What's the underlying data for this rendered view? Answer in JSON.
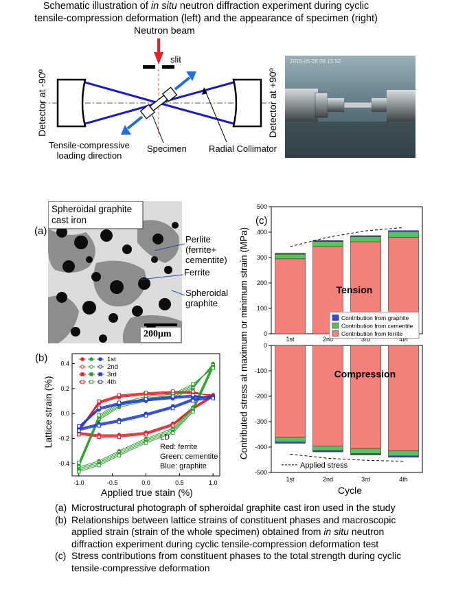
{
  "top_figure": {
    "neutron_beam_label": "Neutron beam",
    "slit_label": "slit",
    "detector_left_label": "Detector at -90º",
    "detector_right_label": "Detector at +90º",
    "loading_direction_label_1": "Tensile-compressive",
    "loading_direction_label_2": "loading direction",
    "specimen_label": "Specimen",
    "collimator_label": "Radial Collimator",
    "photo_timestamp": "2016-05-26  08 15 52",
    "caption_line1_pre": "Schematic illustration of ",
    "caption_line1_em": "in situ",
    "caption_line1_post": " neutron diffraction experiment during cyclic",
    "caption_line2": "tensile-compression deformation (left) and the appearance of specimen (right)"
  },
  "panel_a": {
    "label": "(a)",
    "title_line1": "Spheroidal graphite",
    "title_line2": "cast iron",
    "perlite_1": "Perlite",
    "perlite_2": "(ferrite+",
    "perlite_3": "cementite)",
    "ferrite": "Ferrite",
    "graphite_1": "Spheroidal",
    "graphite_2": "graphite",
    "scale": "200μm"
  },
  "panel_b": {
    "label": "(b)",
    "xlabel": "Applied true stain (%)",
    "ylabel": "Lattice strain (%)",
    "legend": [
      "1st",
      "2nd",
      "3rd",
      "4th"
    ],
    "note_ld": "LD",
    "note_red": "Red: ferrite",
    "note_green": "Green: cementite",
    "note_blue": "Blue: graphite",
    "x_ticks": [
      "-1.0",
      "-0.5",
      "0.0",
      "0.5",
      "1.0"
    ],
    "y_ticks": [
      "0.4",
      "0.2",
      "0.0",
      "-0.2",
      "-0.4"
    ],
    "colors": {
      "ferrite": "#e8202a",
      "cementite": "#2ea02e",
      "graphite": "#1f3fd6"
    }
  },
  "panel_c": {
    "label": "(c)",
    "ylabel": "Contributed stress at maximum or minimum strain (MPa)",
    "xlabel": "Cycle",
    "tension_label": "Tension",
    "compression_label": "Compression",
    "legend": [
      "Contribution from graphite",
      "Contribution from cementite",
      "Contribution from ferrite"
    ],
    "applied_stress_label": "Applied stress",
    "top_y_ticks": [
      "500",
      "400",
      "300",
      "200",
      "100",
      "0"
    ],
    "bottom_y_ticks": [
      "0",
      "-100",
      "-200",
      "-300",
      "-400",
      "-500"
    ],
    "colors": {
      "ferrite": "#f4807a",
      "cementite": "#59c25a",
      "graphite": "#3344ee"
    }
  },
  "chart_data": [
    {
      "type": "bar",
      "categories": [
        "1st",
        "2nd",
        "3rd",
        "4th"
      ],
      "ylabel": "Contributed stress at maximum or minimum strain (MPa)",
      "xlabel": "Cycle",
      "ylim": [
        0,
        500
      ],
      "series": [
        {
          "name": "Contribution from ferrite",
          "values": [
            295,
            343,
            362,
            380
          ]
        },
        {
          "name": "Contribution from cementite",
          "values": [
            18,
            20,
            20,
            22
          ]
        },
        {
          "name": "Contribution from graphite",
          "values": [
            4,
            4,
            4,
            4
          ]
        }
      ],
      "applied_stress_trend": [
        343,
        380,
        405,
        418
      ]
    },
    {
      "type": "bar",
      "categories": [
        "1st",
        "2nd",
        "3rd",
        "4th"
      ],
      "xlabel": "Cycle",
      "ylim": [
        -500,
        0
      ],
      "series": [
        {
          "name": "Contribution from ferrite",
          "values": [
            -362,
            -396,
            -406,
            -415
          ]
        },
        {
          "name": "Contribution from cementite",
          "values": [
            -18,
            -18,
            -20,
            -20
          ]
        },
        {
          "name": "Contribution from graphite",
          "values": [
            -5,
            -5,
            -5,
            -5
          ]
        }
      ],
      "applied_stress_trend": [
        -428,
        -444,
        -452,
        -456
      ]
    },
    {
      "type": "line",
      "xlabel": "Applied true stain (%)",
      "ylabel": "Lattice strain (%)",
      "xlim": [
        -1.1,
        1.1
      ],
      "ylim": [
        -0.5,
        0.48
      ],
      "series": [
        {
          "name": "ferrite",
          "x": [
            -1.0,
            -0.7,
            -0.4,
            0.0,
            0.4,
            0.7,
            1.0,
            0.7,
            0.4,
            0.0,
            -0.4,
            -0.7,
            -1.0
          ],
          "y": [
            -0.15,
            -0.17,
            -0.17,
            -0.15,
            -0.08,
            0.05,
            0.15,
            0.16,
            0.16,
            0.15,
            0.13,
            0.08,
            -0.15
          ]
        },
        {
          "name": "cementite",
          "x": [
            -1.0,
            -0.7,
            -0.4,
            0.0,
            0.4,
            0.7,
            1.0,
            0.7,
            0.4,
            0.0,
            -0.4,
            -0.7,
            -1.0
          ],
          "y": [
            -0.43,
            -0.38,
            -0.3,
            -0.2,
            -0.12,
            0.05,
            0.4,
            0.2,
            0.12,
            0.1,
            0.05,
            -0.05,
            -0.43
          ]
        },
        {
          "name": "graphite",
          "x": [
            -1.0,
            -0.7,
            -0.4,
            0.0,
            0.4,
            0.7,
            1.0,
            0.7,
            0.4,
            0.0,
            -0.4,
            -0.7,
            -1.0
          ],
          "y": [
            -0.12,
            -0.08,
            -0.05,
            0.0,
            0.06,
            0.12,
            0.14,
            0.13,
            0.12,
            0.1,
            0.07,
            0.03,
            -0.12
          ]
        }
      ]
    }
  ],
  "captions": [
    {
      "label": "(a)",
      "text": "Microstructural photograph of spheroidal graphite cast iron used in the study"
    },
    {
      "label": "(b)",
      "text_1": "Relationships between lattice strains of constituent phases and macroscopic",
      "text_2": "applied strain (strain of the whole specimen) obtained from ",
      "text_2_em": "in situ",
      "text_2_post": " neutron",
      "text_3": "diffraction experiment during cyclic tensile-compression deformation test"
    },
    {
      "label": "(c)",
      "text_1": "Stress contributions from constituent phases to the total strength during cyclic",
      "text_2": "tensile-compressive deformation"
    }
  ]
}
